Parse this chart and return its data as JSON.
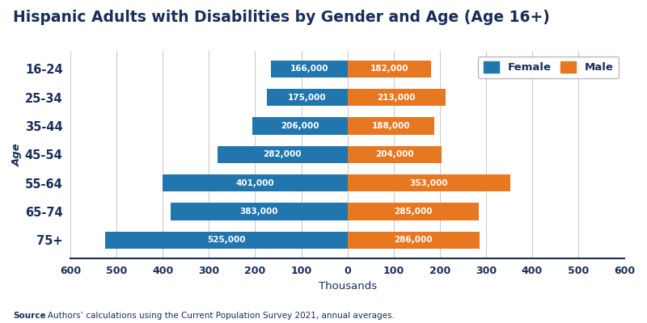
{
  "title": "Hispanic Adults with Disabilities by Gender and Age (Age 16+)",
  "age_groups": [
    "16-24",
    "25-34",
    "35-44",
    "45-54",
    "55-64",
    "65-74",
    "75+"
  ],
  "female_values": [
    166,
    175,
    206,
    282,
    401,
    383,
    525
  ],
  "male_values": [
    182,
    213,
    188,
    204,
    353,
    285,
    286
  ],
  "female_color": "#2176AE",
  "male_color": "#E87722",
  "xlabel": "Thousands",
  "ylabel": "Age",
  "xlim": 600,
  "background_color": "#ffffff",
  "title_color": "#1a2e5a",
  "axis_label_color": "#1a2e5a",
  "tick_label_color": "#1a2e5a",
  "source_bold": "Source",
  "source_rest": ": Authors’ calculations using the Current Population Survey 2021, annual averages.",
  "legend_female": "Female",
  "legend_male": "Male"
}
